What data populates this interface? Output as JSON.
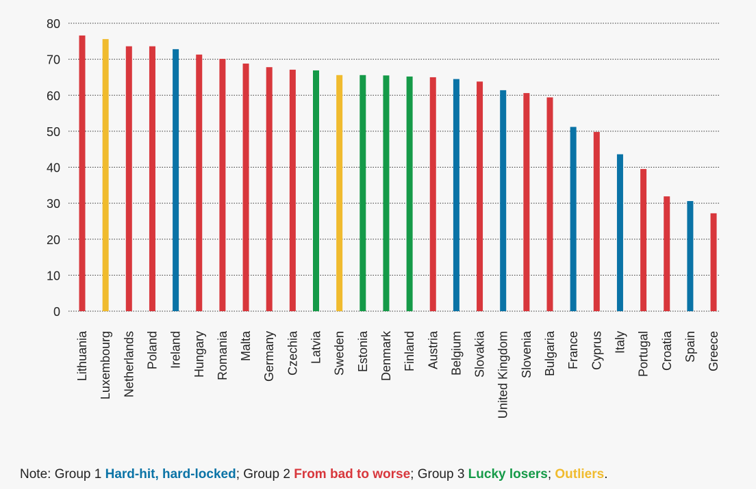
{
  "colors": {
    "group1": "#0a73a6",
    "group2": "#d8373c",
    "group3": "#159a48",
    "outliers": "#f0bb2e",
    "grid": "#333333",
    "text": "#222222"
  },
  "chart_data": {
    "type": "bar",
    "title": "",
    "xlabel": "",
    "ylabel": "",
    "ylim": [
      0,
      80
    ],
    "yticks": [
      0,
      10,
      20,
      30,
      40,
      50,
      60,
      70,
      80
    ],
    "grid": true,
    "categories": [
      "Lithuania",
      "Luxembourg",
      "Netherlands",
      "Poland",
      "Ireland",
      "Hungary",
      "Romania",
      "Malta",
      "Germany",
      "Czechia",
      "Latvia",
      "Sweden",
      "Estonia",
      "Denmark",
      "Finland",
      "Austria",
      "Belgium",
      "Slovakia",
      "United Kingdom",
      "Slovenia",
      "Bulgaria",
      "France",
      "Cyprus",
      "Italy",
      "Portugal",
      "Croatia",
      "Spain",
      "Greece"
    ],
    "values": [
      76.6,
      75.6,
      73.6,
      73.6,
      72.8,
      71.3,
      70.1,
      68.8,
      67.8,
      67.1,
      66.9,
      65.6,
      65.6,
      65.5,
      65.2,
      65.0,
      64.5,
      63.8,
      61.4,
      60.6,
      59.4,
      51.2,
      49.8,
      43.6,
      39.5,
      31.9,
      30.6,
      27.2
    ],
    "groups": [
      "group2",
      "outliers",
      "group2",
      "group2",
      "group1",
      "group2",
      "group2",
      "group2",
      "group2",
      "group2",
      "group3",
      "outliers",
      "group3",
      "group3",
      "group3",
      "group2",
      "group1",
      "group2",
      "group1",
      "group2",
      "group2",
      "group1",
      "group2",
      "group1",
      "group2",
      "group2",
      "group1",
      "group2"
    ]
  },
  "note": {
    "prefix": "Note: Group 1 ",
    "group1_label": "Hard-hit, hard-locked",
    "sep1": "; Group 2 ",
    "group2_label": "From bad to worse",
    "sep2": "; Group 3 ",
    "group3_label": "Lucky losers",
    "sep3": "; ",
    "outliers_label": "Outliers",
    "end": "."
  }
}
